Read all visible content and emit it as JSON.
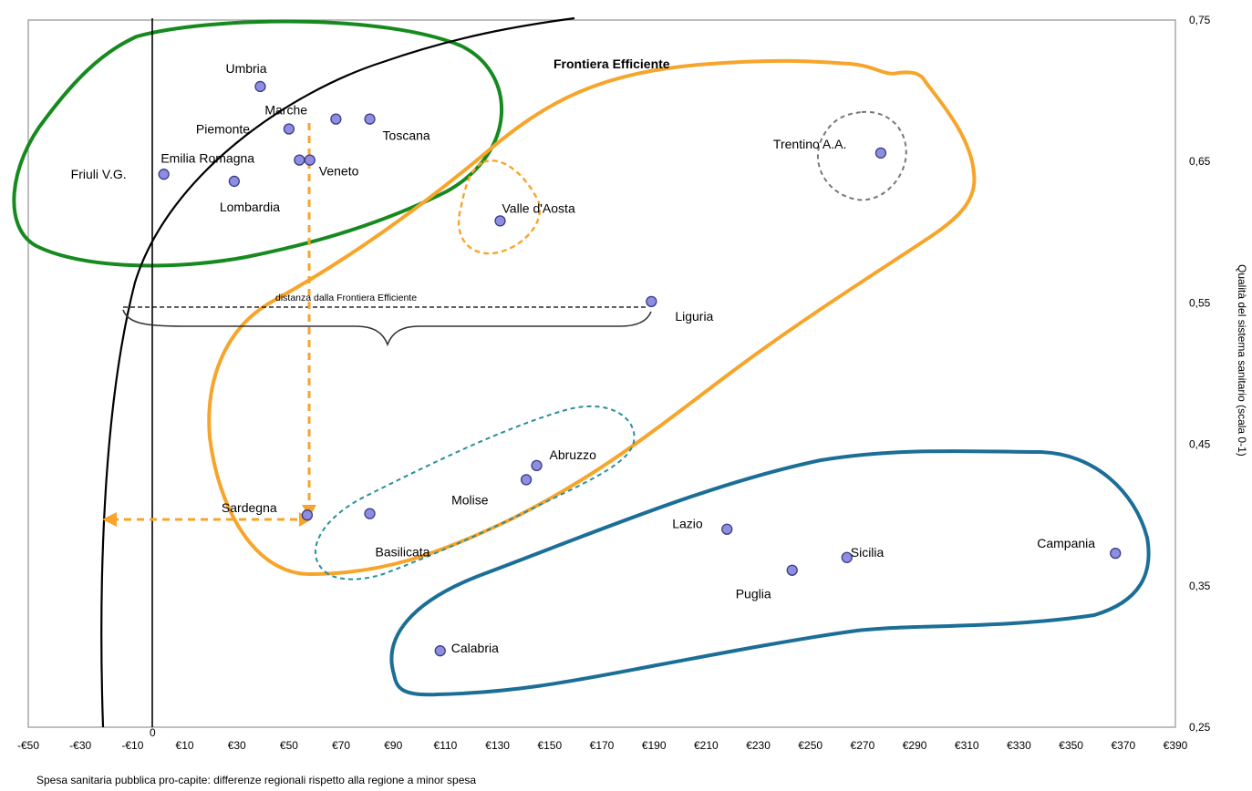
{
  "chart_data": {
    "type": "scatter",
    "annotation_title": "Frontiera Efficiente",
    "distance_label": "distanza dalla Frontiera Efficiente",
    "xlabel": "Spesa sanitaria pubblica pro-capite: differenze regionali rispetto alla regione a minor spesa",
    "ylabel": "Qualità del sistema sanitario (scala 0-1)",
    "xlim": [
      -50,
      390
    ],
    "ylim": [
      0.25,
      0.75
    ],
    "x_ticks": [
      "-€50",
      "-€30",
      "-€10",
      "€10",
      "€30",
      "€50",
      "€70",
      "€90",
      "€110",
      "€130",
      "€150",
      "€170",
      "€190",
      "€210",
      "€230",
      "€250",
      "€270",
      "€290",
      "€310",
      "€330",
      "€350",
      "€370",
      "€390"
    ],
    "zero_label": "0",
    "y_ticks": [
      "0,25",
      "0,35",
      "0,45",
      "0,55",
      "0,65",
      "0,75"
    ],
    "points": [
      {
        "name": "Umbria",
        "x": 39,
        "y": 0.703
      },
      {
        "name": "Marche",
        "x": 68,
        "y": 0.68
      },
      {
        "name": "Toscana",
        "x": 81,
        "y": 0.68
      },
      {
        "name": "Piemonte",
        "x": 50,
        "y": 0.673
      },
      {
        "name": "Emilia Romagna",
        "x": 54,
        "y": 0.651
      },
      {
        "name": "Veneto",
        "x": 58,
        "y": 0.651
      },
      {
        "name": "Friuli V.G.",
        "x": 2,
        "y": 0.641
      },
      {
        "name": "Lombardia",
        "x": 29,
        "y": 0.636
      },
      {
        "name": "Trentino A.A.",
        "x": 277,
        "y": 0.656
      },
      {
        "name": "Valle d'Aosta",
        "x": 131,
        "y": 0.608
      },
      {
        "name": "Liguria",
        "x": 189,
        "y": 0.551
      },
      {
        "name": "Abruzzo",
        "x": 145,
        "y": 0.435
      },
      {
        "name": "Molise",
        "x": 141,
        "y": 0.425
      },
      {
        "name": "Sardegna",
        "x": 57,
        "y": 0.4
      },
      {
        "name": "Basilicata",
        "x": 81,
        "y": 0.401
      },
      {
        "name": "Lazio",
        "x": 218,
        "y": 0.39
      },
      {
        "name": "Sicilia",
        "x": 264,
        "y": 0.37
      },
      {
        "name": "Campania",
        "x": 367,
        "y": 0.373
      },
      {
        "name": "Puglia",
        "x": 243,
        "y": 0.361
      },
      {
        "name": "Calabria",
        "x": 108,
        "y": 0.304
      }
    ],
    "colors": {
      "point_fill": "#8e8ee0",
      "point_stroke": "#3a3a8a",
      "north_group": "#168a1e",
      "middle_group": "#f7a52a",
      "south_group": "#1b6e96",
      "dashed_trentino": "#777777",
      "dashed_basilicata_abruzzo": "#2a8f9a",
      "frontier": "#000000"
    }
  }
}
